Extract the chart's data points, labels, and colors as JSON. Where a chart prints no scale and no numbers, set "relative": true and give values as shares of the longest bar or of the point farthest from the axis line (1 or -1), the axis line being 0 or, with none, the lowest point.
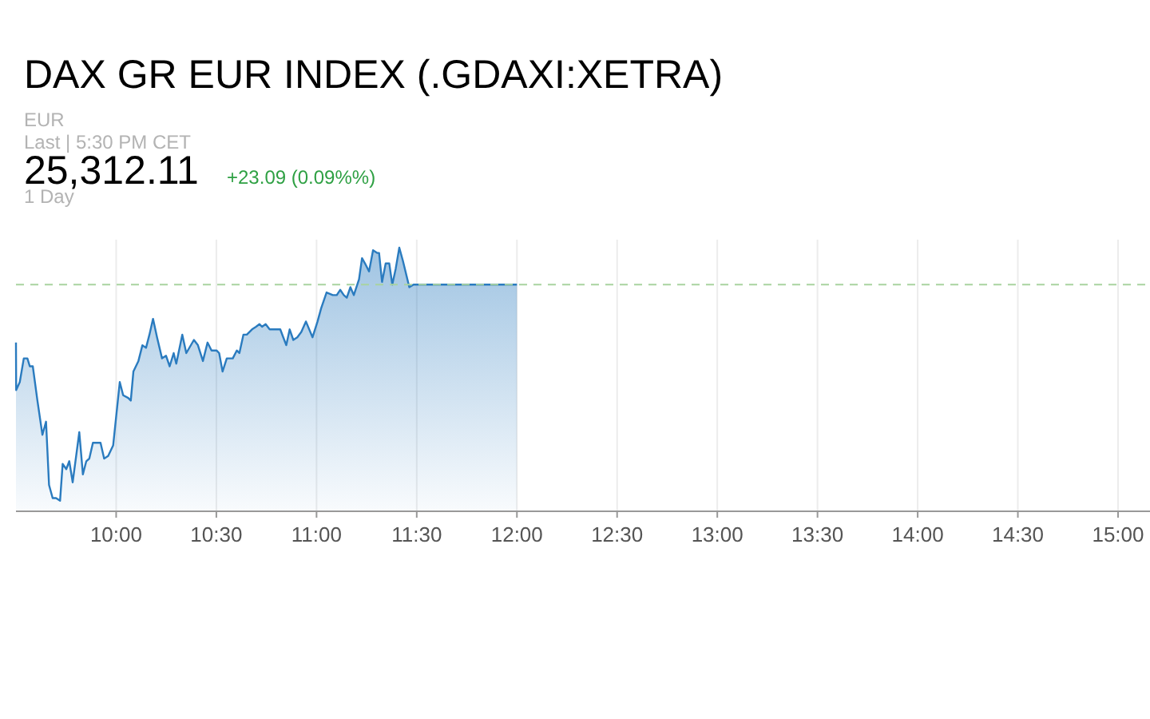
{
  "chart_data": {
    "type": "area",
    "title": "DAX GR EUR INDEX (.GDAXI:XETRA)",
    "subtitle": "EUR",
    "annotations": [
      "Last | 5:30 PM CET",
      "25,312.11",
      "+23.09 (0.09%%)",
      "1 Day"
    ],
    "relative": true,
    "grid": "x",
    "xlim": [
      9.5,
      15
    ],
    "xticks": [
      {
        "value": 10,
        "label": "10:00"
      },
      {
        "value": 10.5,
        "label": "10:30"
      },
      {
        "value": 11,
        "label": "11:00"
      },
      {
        "value": 11.5,
        "label": "11:30"
      },
      {
        "value": 12,
        "label": "12:00"
      },
      {
        "value": 12.5,
        "label": "12:30"
      },
      {
        "value": 13,
        "label": "13:00"
      },
      {
        "value": 13.5,
        "label": "13:30"
      },
      {
        "value": 14,
        "label": "14:00"
      },
      {
        "value": 14.5,
        "label": "14:30"
      },
      {
        "value": 15,
        "label": "15:00"
      }
    ],
    "ref_lines": [
      {
        "axis": "y",
        "value": 0.86,
        "label": null,
        "color": "#a9d3a0",
        "line_style": "dashed"
      }
    ],
    "series": [
      {
        "color": "#2a7bbf",
        "x": [
          9.5,
          9.501,
          9.519,
          9.539,
          9.557,
          9.569,
          9.584,
          9.607,
          9.632,
          9.65,
          9.665,
          9.683,
          9.7,
          9.72,
          9.733,
          9.751,
          9.766,
          9.783,
          9.816,
          9.834,
          9.851,
          9.866,
          9.884,
          9.909,
          9.922,
          9.94,
          9.96,
          9.985,
          10.018,
          10.035,
          10.06,
          10.073,
          10.086,
          10.111,
          10.131,
          10.149,
          10.166,
          10.184,
          10.204,
          10.229,
          10.249,
          10.267,
          10.287,
          10.3,
          10.33,
          10.35,
          10.388,
          10.408,
          10.433,
          10.456,
          10.476,
          10.501,
          10.514,
          10.531,
          10.552,
          10.582,
          10.602,
          10.615,
          10.635,
          10.652,
          10.678,
          10.698,
          10.715,
          10.728,
          10.746,
          10.766,
          10.804,
          10.819,
          10.834,
          10.849,
          10.866,
          10.884,
          10.904,
          10.924,
          10.947,
          10.98,
          11.005,
          11.023,
          11.05,
          11.081,
          11.101,
          11.118,
          11.136,
          11.151,
          11.169,
          11.186,
          11.212,
          11.227,
          11.242,
          11.262,
          11.282,
          11.302,
          11.312,
          11.327,
          11.345,
          11.363,
          11.378,
          11.395,
          11.413,
          11.431,
          11.463,
          11.484,
          12.0
        ],
        "values": [
          0.64,
          0.46,
          0.49,
          0.58,
          0.58,
          0.55,
          0.55,
          0.42,
          0.29,
          0.34,
          0.1,
          0.05,
          0.05,
          0.04,
          0.18,
          0.16,
          0.19,
          0.11,
          0.3,
          0.14,
          0.19,
          0.2,
          0.26,
          0.26,
          0.26,
          0.2,
          0.21,
          0.25,
          0.49,
          0.44,
          0.43,
          0.42,
          0.53,
          0.57,
          0.63,
          0.62,
          0.67,
          0.73,
          0.66,
          0.58,
          0.59,
          0.55,
          0.6,
          0.56,
          0.67,
          0.6,
          0.65,
          0.63,
          0.57,
          0.64,
          0.61,
          0.61,
          0.6,
          0.53,
          0.58,
          0.58,
          0.61,
          0.6,
          0.67,
          0.67,
          0.69,
          0.7,
          0.71,
          0.7,
          0.71,
          0.69,
          0.69,
          0.69,
          0.66,
          0.63,
          0.69,
          0.65,
          0.66,
          0.68,
          0.72,
          0.66,
          0.72,
          0.77,
          0.83,
          0.82,
          0.82,
          0.84,
          0.82,
          0.81,
          0.85,
          0.82,
          0.88,
          0.96,
          0.94,
          0.91,
          0.99,
          0.98,
          0.98,
          0.87,
          0.94,
          0.94,
          0.86,
          0.92,
          1.0,
          0.95,
          0.85,
          0.86,
          0.86
        ]
      }
    ]
  }
}
